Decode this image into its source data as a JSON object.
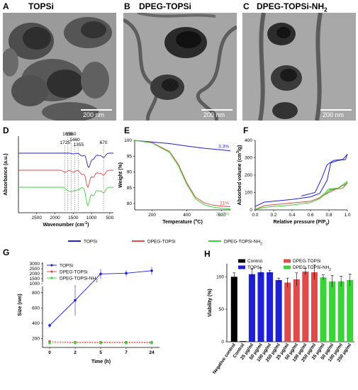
{
  "panels": {
    "A": {
      "letter": "A",
      "title": "TOPSi",
      "scale": "200 nm"
    },
    "B": {
      "letter": "B",
      "title": "DPEG-TOPSi",
      "scale": "200 nm"
    },
    "C": {
      "letter": "C",
      "title": "DPEG-TOPSi-NH",
      "title_sub": "2",
      "scale": "200 nm"
    }
  },
  "colors": {
    "topsi": "#1f1fd6",
    "dpeg": "#e04a4a",
    "nh2": "#3ad43a",
    "control": "#000000"
  },
  "legend_mid": [
    {
      "label": "TOPSi",
      "color": "#1f1fd6"
    },
    {
      "label": "DPEG-TOPSi",
      "color": "#e04a4a"
    },
    {
      "label": "DPEG-TOPSi-NH",
      "sub": "2",
      "color": "#3ad43a"
    }
  ],
  "chart_data": [
    {
      "panel": "D",
      "type": "line",
      "xlabel": "Wavenumber (cm",
      "xlabel_sup": "-1",
      "xlabel_end": ")",
      "ylabel": "Absorbance (a.u.)",
      "xlim": [
        3000,
        400
      ],
      "xticks": [
        "2500",
        "2000",
        "1500",
        "1000",
        "500"
      ],
      "xtick_values": [
        2500,
        2000,
        1500,
        1000,
        500
      ],
      "peaks": [
        "1725",
        "1655",
        "1560",
        "1460",
        "1355",
        "670"
      ],
      "peak_values": [
        1725,
        1655,
        1560,
        1460,
        1355,
        670
      ]
    },
    {
      "panel": "E",
      "type": "line",
      "xlabel": "Temperature (",
      "xlabel_sup": "o",
      "xlabel_end": "C)",
      "ylabel": "Weight (%)",
      "xlim": [
        100,
        650
      ],
      "ylim": [
        78,
        100
      ],
      "xticks": [
        "200",
        "400",
        "600"
      ],
      "xtick_values": [
        200,
        400,
        600
      ],
      "yticks": [
        "100",
        "95",
        "90",
        "85",
        "80"
      ],
      "ytick_values": [
        100,
        95,
        90,
        85,
        80
      ],
      "annotations": [
        {
          "text": "3.3%",
          "series": 0
        },
        {
          "text": "21%",
          "series": 1
        },
        {
          "text": "21.7%",
          "series": 2
        }
      ],
      "series": [
        {
          "name": "TOPSi",
          "x": [
            100,
            200,
            300,
            400,
            500,
            600,
            650
          ],
          "y": [
            100,
            99.5,
            99,
            98.2,
            97.5,
            97,
            96.7
          ]
        },
        {
          "name": "DPEG-TOPSi",
          "x": [
            100,
            200,
            300,
            350,
            400,
            450,
            500,
            550,
            600,
            650
          ],
          "y": [
            100,
            99.3,
            96.5,
            92.5,
            86.5,
            82,
            80.2,
            79.5,
            79.2,
            79
          ]
        },
        {
          "name": "DPEG-TOPSi-NH2",
          "x": [
            100,
            200,
            300,
            350,
            400,
            450,
            500,
            550,
            600,
            650
          ],
          "y": [
            100,
            99.2,
            96.2,
            92,
            86,
            81.5,
            79.6,
            78.9,
            78.5,
            78.3
          ]
        }
      ]
    },
    {
      "panel": "F",
      "type": "line",
      "xlabel": "Relative pressure (P/P",
      "xlabel_sub": "0",
      "xlabel_end": ")",
      "ylabel": "Absorbed volume (cm",
      "ylabel_sup": "3",
      "ylabel_end": "/g)",
      "xlim": [
        0,
        1
      ],
      "ylim": [
        0,
        400
      ],
      "xticks": [
        "0.0",
        "0.2",
        "0.4",
        "0.6",
        "0.8",
        "1.0"
      ],
      "xtick_values": [
        0,
        0.2,
        0.4,
        0.6,
        0.8,
        1.0
      ],
      "yticks": [
        "0",
        "100",
        "200",
        "300",
        "400"
      ],
      "ytick_values": [
        0,
        100,
        200,
        300,
        400
      ]
    },
    {
      "panel": "G",
      "type": "line",
      "xlabel": "Time (h)",
      "ylabel": "Size (nm)",
      "categories": [
        "0",
        "2",
        "5",
        "7",
        "24"
      ],
      "yticks": [
        "200",
        "400",
        "600",
        "800",
        "1000",
        "1500",
        "2000",
        "2500",
        "3000"
      ],
      "ytick_values": [
        200,
        400,
        600,
        800,
        1000,
        1500,
        2000,
        2500,
        3000
      ],
      "series": [
        {
          "name": "TOPSi",
          "values": [
            370,
            700,
            1980,
            2050,
            2300
          ],
          "err": [
            30,
            200,
            500,
            300,
            400
          ]
        },
        {
          "name": "DPEG-TOPSi",
          "values": [
            160,
            150,
            150,
            150,
            150
          ],
          "err": [
            15,
            10,
            10,
            10,
            10
          ]
        },
        {
          "name": "DPEG-TOPSi-NH2",
          "values": [
            140,
            140,
            140,
            140,
            140
          ],
          "err": [
            10,
            10,
            10,
            10,
            10
          ]
        }
      ]
    },
    {
      "panel": "H",
      "type": "bar",
      "ylabel": "Viability (%)",
      "ylim": [
        0,
        120
      ],
      "yticks": [
        "0",
        "50",
        "100"
      ],
      "ytick_values": [
        0,
        50,
        100
      ],
      "categories": [
        "Negative control",
        "Control",
        "25 μg/ml",
        "50 μg/ml",
        "100 μg/ml",
        "250 μg/ml",
        "25 μg/ml",
        "50 μg/ml",
        "100 μg/ml",
        "250 μg/ml",
        "25 μg/ml",
        "50 μg/ml",
        "100 μg/ml",
        "250 μg/ml"
      ],
      "legend": [
        {
          "label": "Control",
          "color": "#000000"
        },
        {
          "label": "TOPSi",
          "color": "#1f1fd6"
        },
        {
          "label": "DPEG-TOPSi",
          "color": "#e04a4a"
        },
        {
          "label": "DPEG-TOPSi-NH",
          "sub": "2",
          "color": "#3ad43a"
        }
      ],
      "values": [
        100,
        1,
        104,
        107,
        107,
        95,
        91,
        96,
        108,
        107,
        99,
        93,
        93,
        95
      ],
      "errors": [
        6,
        0,
        8,
        7,
        3,
        3,
        7,
        10,
        5,
        11,
        4,
        9,
        8,
        9
      ],
      "groups": [
        0,
        0,
        1,
        1,
        1,
        1,
        2,
        2,
        2,
        2,
        3,
        3,
        3,
        3
      ]
    }
  ]
}
